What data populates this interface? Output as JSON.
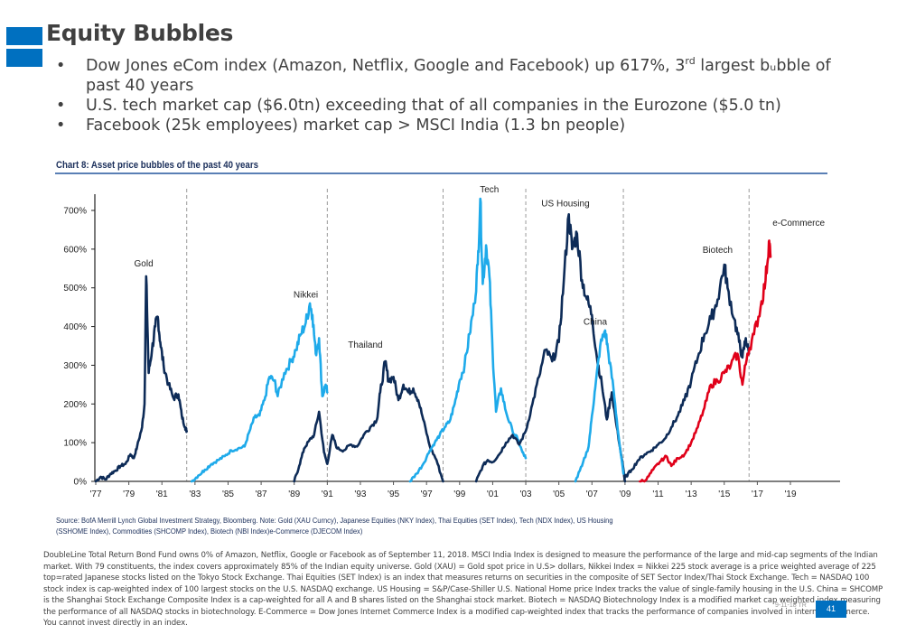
{
  "slide": {
    "title": "Equity Bubbles",
    "bullets": [
      {
        "text": "Dow Jones eCom index (Amazon, Netflix, Google and Facebook) up 617%, 3",
        "sup": "rd",
        "after": " largest bᵤbble of past 40 years"
      },
      {
        "text": "U.S. tech market cap ($6.0tn) exceeding that of all companies in the Eurozone ($5.0 tn)",
        "sup": "",
        "after": ""
      },
      {
        "text": "Facebook (25k employees) market cap > MSCI India (1.3 bn people)",
        "sup": "",
        "after": ""
      }
    ],
    "source": "Source: BofA Merrill Lynch Global Investment Strategy, Bloomberg. Note: Gold (XAU Curncy), Japanese Equities (NKY Index), Thai Equities (SET Index), Tech (NDX Index), US Housing (SSHOME Index), Commodities (SHCOMP Index), Biotech (NBI Index)e-Commerce (DJECOM Index)",
    "disclaimer": "DoubleLine Total Return Bond Fund owns 0% of Amazon, Netflix, Google or Facebook as of September 11, 2018. MSCI India Index is designed to measure the performance of the large and mid-cap segments of the Indian market. With 79 constituents, the index covers approximately 85% of the Indian equity universe. Gold (XAU) = Gold spot price in U.S> dollars, Nikkei Index = Nikkei 225 stock average is a price weighted average of 225 top=rated Japanese stocks listed on the Tokyo Stock Exchange.  Thai Equities (SET Index) is an index that measures returns on securities in the composite of SET Sector Index/Thai Stock Exchange. Tech = NASDAQ 100 stock index is cap-weighted index of 100 largest stocks on the U.S. NASDAQ exchange. US Housing = S&P/Case-Shiller U.S. National Home price Index tracks the value of single-family housing in the U.S.  China = SHCOMP is the Shanghai Stock Exchange Composite Index is a cap-weighted for all A and B shares listed on the Shanghai stock market. Biotech = NASDAQ Biotechnology Index is a modified market cap weighted index measuring the performance of all NASDAQ stocks in biotechnology. E-Commerce = Dow Jones Internet Commerce Index is a modified cap-weighted index that tracks the performance of companies involved in internet commerce. You cannot invest directly in an index.",
    "date_stamp": "9-11-18 TR",
    "page_number": "41",
    "colors": {
      "accent": "#0070c0",
      "navy": "#0d2b57",
      "light_blue": "#1eaaea",
      "red": "#e00019",
      "text": "#404040"
    }
  },
  "chart_data": {
    "type": "line",
    "title": "Chart 8: Asset price bubbles of the past 40 years",
    "xlabel": "",
    "ylabel": "",
    "x_range": [
      1977,
      2020
    ],
    "ylim": [
      0,
      700
    ],
    "y_ticks": [
      "0%",
      "100%",
      "200%",
      "300%",
      "400%",
      "500%",
      "600%",
      "700%"
    ],
    "y_tick_values": [
      0,
      100,
      200,
      300,
      400,
      500,
      600,
      700
    ],
    "x_ticks": [
      "'77",
      "'79",
      "'81",
      "'83",
      "'85",
      "'87",
      "'89",
      "'91",
      "'93",
      "'95",
      "'97",
      "'99",
      "'01",
      "'03",
      "'05",
      "'07",
      "'09",
      "'11",
      "'13",
      "'15",
      "'17",
      "'19"
    ],
    "x_tick_values": [
      1977,
      1979,
      1981,
      1983,
      1985,
      1987,
      1989,
      1991,
      1993,
      1995,
      1997,
      1999,
      2001,
      2003,
      2005,
      2007,
      2009,
      2011,
      2013,
      2015,
      2017,
      2019
    ],
    "peak_dividers": [
      1982.5,
      1991.0,
      1998.0,
      2003.0,
      2008.9,
      2016.5
    ],
    "grid": false,
    "legend": "inline-labels",
    "series": [
      {
        "name": "Gold",
        "color": "#0d2b57",
        "label_at": [
          1979.9,
          555
        ],
        "points": [
          [
            1977.0,
            0
          ],
          [
            1977.3,
            12
          ],
          [
            1977.6,
            5
          ],
          [
            1977.9,
            20
          ],
          [
            1978.2,
            28
          ],
          [
            1978.5,
            40
          ],
          [
            1978.8,
            45
          ],
          [
            1979.1,
            70
          ],
          [
            1979.3,
            60
          ],
          [
            1979.5,
            90
          ],
          [
            1979.8,
            140
          ],
          [
            1979.95,
            200
          ],
          [
            1980.05,
            530
          ],
          [
            1980.2,
            280
          ],
          [
            1980.4,
            340
          ],
          [
            1980.6,
            400
          ],
          [
            1980.75,
            425
          ],
          [
            1980.9,
            360
          ],
          [
            1981.1,
            300
          ],
          [
            1981.4,
            250
          ],
          [
            1981.7,
            215
          ],
          [
            1982.0,
            225
          ],
          [
            1982.2,
            170
          ],
          [
            1982.4,
            140
          ],
          [
            1982.5,
            130
          ]
        ]
      },
      {
        "name": "Nikkei",
        "color": "#1eaaea",
        "label_at": [
          1989.7,
          475
        ],
        "points": [
          [
            1982.8,
            0
          ],
          [
            1983.2,
            15
          ],
          [
            1983.6,
            30
          ],
          [
            1984.0,
            45
          ],
          [
            1984.4,
            55
          ],
          [
            1984.8,
            65
          ],
          [
            1985.2,
            80
          ],
          [
            1985.6,
            85
          ],
          [
            1986.0,
            90
          ],
          [
            1986.3,
            130
          ],
          [
            1986.6,
            165
          ],
          [
            1986.9,
            170
          ],
          [
            1987.2,
            210
          ],
          [
            1987.5,
            270
          ],
          [
            1987.8,
            260
          ],
          [
            1988.0,
            220
          ],
          [
            1988.4,
            280
          ],
          [
            1988.8,
            310
          ],
          [
            1989.1,
            340
          ],
          [
            1989.4,
            380
          ],
          [
            1989.7,
            410
          ],
          [
            1989.95,
            460
          ],
          [
            1990.1,
            430
          ],
          [
            1990.3,
            330
          ],
          [
            1990.5,
            370
          ],
          [
            1990.7,
            220
          ],
          [
            1990.9,
            250
          ],
          [
            1991.0,
            230
          ]
        ]
      },
      {
        "name": "Thailand",
        "color": "#0d2b57",
        "label_at": [
          1993.3,
          345
        ],
        "points": [
          [
            1989.0,
            0
          ],
          [
            1989.3,
            40
          ],
          [
            1989.6,
            85
          ],
          [
            1989.9,
            105
          ],
          [
            1990.2,
            120
          ],
          [
            1990.5,
            180
          ],
          [
            1990.8,
            75
          ],
          [
            1991.0,
            45
          ],
          [
            1991.3,
            120
          ],
          [
            1991.6,
            85
          ],
          [
            1992.0,
            80
          ],
          [
            1992.4,
            95
          ],
          [
            1992.8,
            90
          ],
          [
            1993.2,
            120
          ],
          [
            1993.6,
            140
          ],
          [
            1994.0,
            160
          ],
          [
            1994.2,
            230
          ],
          [
            1994.5,
            310
          ],
          [
            1994.7,
            260
          ],
          [
            1995.0,
            270
          ],
          [
            1995.3,
            210
          ],
          [
            1995.6,
            250
          ],
          [
            1995.9,
            230
          ],
          [
            1996.2,
            240
          ],
          [
            1996.5,
            210
          ],
          [
            1996.8,
            160
          ],
          [
            1997.2,
            90
          ],
          [
            1997.6,
            55
          ],
          [
            1998.0,
            0
          ]
        ]
      },
      {
        "name": "Tech",
        "color": "#1eaaea",
        "label_at": [
          2000.8,
          747
        ],
        "points": [
          [
            1996.0,
            0
          ],
          [
            1996.4,
            20
          ],
          [
            1996.8,
            45
          ],
          [
            1997.2,
            80
          ],
          [
            1997.5,
            100
          ],
          [
            1997.8,
            120
          ],
          [
            1998.1,
            140
          ],
          [
            1998.4,
            155
          ],
          [
            1998.7,
            200
          ],
          [
            1999.0,
            260
          ],
          [
            1999.3,
            300
          ],
          [
            1999.6,
            380
          ],
          [
            1999.9,
            460
          ],
          [
            2000.1,
            560
          ],
          [
            2000.25,
            730
          ],
          [
            2000.4,
            510
          ],
          [
            2000.6,
            610
          ],
          [
            2000.8,
            530
          ],
          [
            2001.0,
            330
          ],
          [
            2001.2,
            180
          ],
          [
            2001.5,
            240
          ],
          [
            2001.8,
            180
          ],
          [
            2002.2,
            130
          ],
          [
            2002.5,
            110
          ],
          [
            2002.8,
            75
          ],
          [
            2003.0,
            60
          ]
        ]
      },
      {
        "name": "US Housing",
        "color": "#0d2b57",
        "label_at": [
          2005.4,
          710
        ],
        "points": [
          [
            2000.0,
            0
          ],
          [
            2000.4,
            40
          ],
          [
            2000.7,
            55
          ],
          [
            2001.0,
            50
          ],
          [
            2001.4,
            70
          ],
          [
            2001.8,
            100
          ],
          [
            2002.2,
            120
          ],
          [
            2002.6,
            95
          ],
          [
            2003.0,
            130
          ],
          [
            2003.4,
            200
          ],
          [
            2003.8,
            270
          ],
          [
            2004.2,
            340
          ],
          [
            2004.6,
            310
          ],
          [
            2005.0,
            360
          ],
          [
            2005.3,
            520
          ],
          [
            2005.6,
            690
          ],
          [
            2005.8,
            600
          ],
          [
            2006.1,
            640
          ],
          [
            2006.4,
            520
          ],
          [
            2006.7,
            470
          ],
          [
            2007.0,
            430
          ],
          [
            2007.3,
            320
          ],
          [
            2007.6,
            250
          ],
          [
            2007.9,
            160
          ],
          [
            2008.2,
            230
          ],
          [
            2008.5,
            140
          ],
          [
            2008.8,
            60
          ],
          [
            2009.0,
            0
          ]
        ]
      },
      {
        "name": "China",
        "color": "#1eaaea",
        "label_at": [
          2007.2,
          405
        ],
        "points": [
          [
            2006.0,
            0
          ],
          [
            2006.4,
            40
          ],
          [
            2006.8,
            90
          ],
          [
            2007.0,
            170
          ],
          [
            2007.2,
            240
          ],
          [
            2007.5,
            350
          ],
          [
            2007.8,
            390
          ],
          [
            2008.0,
            330
          ],
          [
            2008.3,
            240
          ],
          [
            2008.6,
            120
          ],
          [
            2008.9,
            20
          ]
        ]
      },
      {
        "name": "Biotech",
        "color": "#0d2b57",
        "label_at": [
          2014.6,
          590
        ],
        "points": [
          [
            2009.0,
            10
          ],
          [
            2009.4,
            30
          ],
          [
            2009.8,
            55
          ],
          [
            2010.2,
            70
          ],
          [
            2010.6,
            80
          ],
          [
            2011.0,
            95
          ],
          [
            2011.4,
            110
          ],
          [
            2011.8,
            140
          ],
          [
            2012.2,
            170
          ],
          [
            2012.6,
            210
          ],
          [
            2013.0,
            260
          ],
          [
            2013.4,
            320
          ],
          [
            2013.8,
            380
          ],
          [
            2014.2,
            420
          ],
          [
            2014.6,
            470
          ],
          [
            2015.0,
            560
          ],
          [
            2015.2,
            500
          ],
          [
            2015.6,
            420
          ],
          [
            2015.9,
            360
          ],
          [
            2016.1,
            320
          ],
          [
            2016.3,
            370
          ],
          [
            2016.5,
            330
          ]
        ]
      },
      {
        "name": "e-Commerce",
        "color": "#e00019",
        "label_at": [
          2019.5,
          660
        ],
        "points": [
          [
            2009.9,
            0
          ],
          [
            2010.3,
            5
          ],
          [
            2010.7,
            30
          ],
          [
            2011.1,
            50
          ],
          [
            2011.5,
            65
          ],
          [
            2011.8,
            40
          ],
          [
            2012.2,
            60
          ],
          [
            2012.6,
            70
          ],
          [
            2013.0,
            100
          ],
          [
            2013.4,
            140
          ],
          [
            2013.8,
            190
          ],
          [
            2014.2,
            250
          ],
          [
            2014.6,
            260
          ],
          [
            2015.0,
            280
          ],
          [
            2015.4,
            300
          ],
          [
            2015.8,
            330
          ],
          [
            2016.1,
            250
          ],
          [
            2016.4,
            330
          ],
          [
            2016.8,
            380
          ],
          [
            2017.2,
            450
          ],
          [
            2017.5,
            520
          ],
          [
            2017.7,
            620
          ],
          [
            2017.8,
            580
          ]
        ]
      }
    ]
  }
}
